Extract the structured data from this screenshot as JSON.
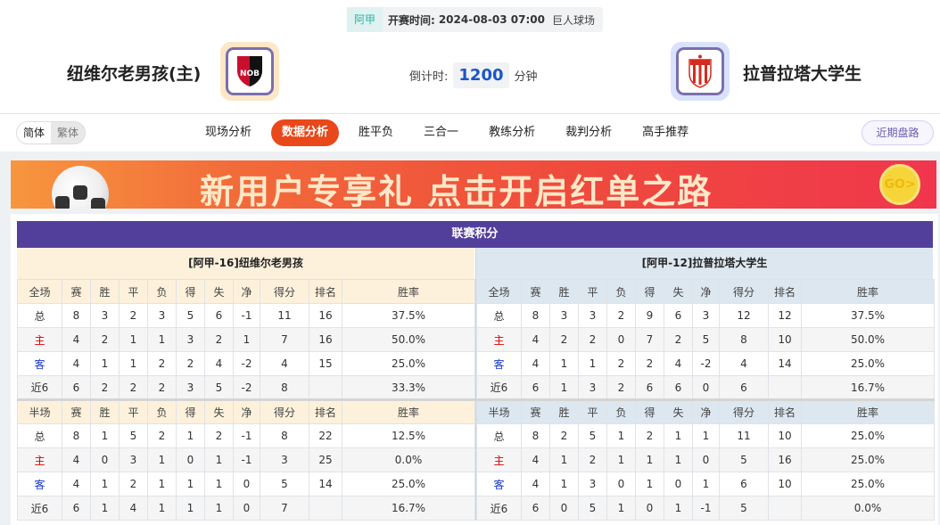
{
  "match": {
    "league": "阿甲",
    "time_label": "开赛时间:",
    "time": "2024-08-03 07:00",
    "venue": "巨人球场"
  },
  "home": {
    "name": "纽维尔老男孩(主)",
    "logo": "NOB",
    "logo_bg": "#fde7c6"
  },
  "away": {
    "name": "拉普拉塔大学生",
    "logo": "EdeLP",
    "logo_bg": "#d8e2fb"
  },
  "countdown": {
    "label": "倒计时:",
    "value": "1200",
    "unit": "分钟"
  },
  "lang": {
    "simplified": "简体",
    "traditional": "繁体"
  },
  "tabs": [
    "现场分析",
    "数据分析",
    "胜平负",
    "三合一",
    "教练分析",
    "裁判分析",
    "高手推荐"
  ],
  "active_tab": "数据分析",
  "recent_button": "近期盘路",
  "banner": {
    "text": "新用户专享礼 点击开启红单之路",
    "go": "GO>"
  },
  "standings": {
    "title": "联赛积分",
    "columns": [
      "赛",
      "胜",
      "平",
      "负",
      "得",
      "失",
      "净",
      "得分",
      "排名",
      "胜率"
    ],
    "full_label": "全场",
    "half_label": "半场",
    "left": {
      "header": "[阿甲-16]纽维尔老男孩",
      "full": [
        [
          "总",
          "8",
          "3",
          "2",
          "3",
          "5",
          "6",
          "-1",
          "11",
          "16",
          "37.5%"
        ],
        [
          "主",
          "4",
          "2",
          "1",
          "1",
          "3",
          "2",
          "1",
          "7",
          "16",
          "50.0%"
        ],
        [
          "客",
          "4",
          "1",
          "1",
          "2",
          "2",
          "4",
          "-2",
          "4",
          "15",
          "25.0%"
        ],
        [
          "近6",
          "6",
          "2",
          "2",
          "2",
          "3",
          "5",
          "-2",
          "8",
          "",
          "33.3%"
        ]
      ],
      "half": [
        [
          "总",
          "8",
          "1",
          "5",
          "2",
          "1",
          "2",
          "-1",
          "8",
          "22",
          "12.5%"
        ],
        [
          "主",
          "4",
          "0",
          "3",
          "1",
          "0",
          "1",
          "-1",
          "3",
          "25",
          "0.0%"
        ],
        [
          "客",
          "4",
          "1",
          "2",
          "1",
          "1",
          "1",
          "0",
          "5",
          "14",
          "25.0%"
        ],
        [
          "近6",
          "6",
          "1",
          "4",
          "1",
          "1",
          "1",
          "0",
          "7",
          "",
          "16.7%"
        ]
      ]
    },
    "right": {
      "header": "[阿甲-12]拉普拉塔大学生",
      "full": [
        [
          "总",
          "8",
          "3",
          "3",
          "2",
          "9",
          "6",
          "3",
          "12",
          "12",
          "37.5%"
        ],
        [
          "主",
          "4",
          "2",
          "2",
          "0",
          "7",
          "2",
          "5",
          "8",
          "10",
          "50.0%"
        ],
        [
          "客",
          "4",
          "1",
          "1",
          "2",
          "2",
          "4",
          "-2",
          "4",
          "14",
          "25.0%"
        ],
        [
          "近6",
          "6",
          "1",
          "3",
          "2",
          "6",
          "6",
          "0",
          "6",
          "",
          "16.7%"
        ]
      ],
      "half": [
        [
          "总",
          "8",
          "2",
          "5",
          "1",
          "2",
          "1",
          "1",
          "11",
          "10",
          "25.0%"
        ],
        [
          "主",
          "4",
          "1",
          "2",
          "1",
          "1",
          "1",
          "0",
          "5",
          "16",
          "25.0%"
        ],
        [
          "客",
          "4",
          "1",
          "3",
          "0",
          "1",
          "0",
          "1",
          "6",
          "10",
          "25.0%"
        ],
        [
          "近6",
          "6",
          "0",
          "5",
          "1",
          "0",
          "1",
          "-1",
          "5",
          "",
          "0.0%"
        ]
      ]
    }
  }
}
